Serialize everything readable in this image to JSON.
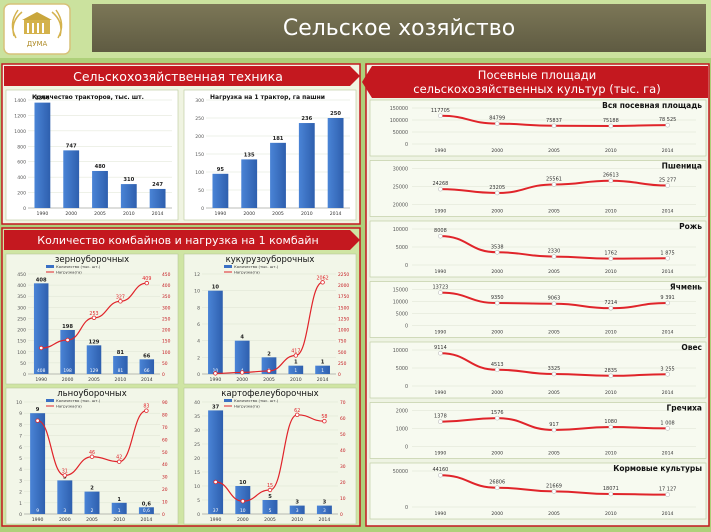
{
  "header": {
    "title": "Сельское хозяйство",
    "logo_text": "ДУМА"
  },
  "colors": {
    "background": "#aed07a",
    "header_bar": "#6f6b4f",
    "section_banner": "#c4181f",
    "bar": "#3a70c4",
    "line": "#e0242a",
    "panel": "#f4f7ec"
  },
  "panels": {
    "machinery_title": "Сельскохозяйственная техника",
    "combines_title": "Количество комбайнов и нагрузка на 1 комбайн",
    "crops_title_line1": "Посевные площади",
    "crops_title_line2": "сельскохозяйственных культур (тыс. га)"
  },
  "chart_data": [
    {
      "id": "tractors",
      "type": "bar",
      "title": "Количество тракторов, тыс. шт.",
      "categories": [
        "1990",
        "2000",
        "2005",
        "2010",
        "2014"
      ],
      "values": [
        1366,
        747,
        480,
        310,
        247
      ],
      "value_labels": [
        "1366",
        "747",
        "480",
        "310",
        "247"
      ],
      "yticks": [
        "0",
        "200",
        "400",
        "600",
        "800",
        "1000",
        "1200",
        "1400"
      ],
      "ylim": [
        0,
        1400
      ]
    },
    {
      "id": "tractor_load",
      "type": "bar",
      "title": "Нагрузка на 1 трактор, га пашни",
      "categories": [
        "1990",
        "2000",
        "2005",
        "2010",
        "2014"
      ],
      "values": [
        95,
        135,
        181,
        236,
        250
      ],
      "value_labels": [
        "95",
        "135",
        "181",
        "236",
        "250"
      ],
      "yticks": [
        "0",
        "50",
        "100",
        "150",
        "200",
        "250",
        "300"
      ],
      "ylim": [
        0,
        300
      ]
    },
    {
      "id": "grain_combines",
      "type": "bar",
      "title": "зерноуборочных",
      "legend": [
        "Количество (тыс. шт.)",
        "Нагрузка(га)"
      ],
      "categories": [
        "1990",
        "2000",
        "2005",
        "2010",
        "2014"
      ],
      "values": [
        408,
        198,
        129,
        81,
        66
      ],
      "value_labels": [
        "408",
        "198",
        "129",
        "81",
        "66"
      ],
      "line_values": [
        117,
        153,
        253,
        327,
        409
      ],
      "line_labels": [
        "",
        "",
        "253",
        "327",
        "409"
      ],
      "yticks": [
        "0",
        "50",
        "100",
        "150",
        "200",
        "250",
        "300",
        "350",
        "400",
        "450"
      ],
      "ylim": [
        0,
        450
      ],
      "y2ticks": [
        "0",
        "50",
        "100",
        "150",
        "200",
        "250",
        "300",
        "350",
        "400",
        "450"
      ],
      "y2lim": [
        0,
        450
      ]
    },
    {
      "id": "corn_combines",
      "type": "bar",
      "title": "кукурузоуборочных",
      "legend": [
        "Количество (тыс. шт.)",
        "Нагрузка(га)"
      ],
      "categories": [
        "1990",
        "2000",
        "2005",
        "2010",
        "2014"
      ],
      "values": [
        10,
        4,
        2,
        1,
        1
      ],
      "value_labels": [
        "10",
        "4",
        "2",
        "1",
        "1"
      ],
      "line_values": [
        14,
        35,
        69,
        417,
        2062
      ],
      "line_labels": [
        "",
        "",
        "",
        "417",
        "2062"
      ],
      "yticks": [
        "0",
        "2",
        "4",
        "6",
        "8",
        "10",
        "12"
      ],
      "ylim": [
        0,
        12
      ],
      "y2ticks": [
        "0",
        "250",
        "500",
        "750",
        "1000",
        "1250",
        "1500",
        "1750",
        "2000",
        "2250"
      ],
      "y2lim": [
        0,
        2250
      ]
    },
    {
      "id": "flax_combines",
      "type": "bar",
      "title": "льноуборочных",
      "legend": [
        "Количество (тыс. шт.)",
        "Нагрузка(га)"
      ],
      "categories": [
        "1990",
        "2000",
        "2005",
        "2010",
        "2014"
      ],
      "values": [
        9,
        3,
        2,
        1,
        0.6
      ],
      "value_labels": [
        "9",
        "3",
        "2",
        "1",
        "0,6"
      ],
      "line_values": [
        75,
        31,
        46,
        42,
        83
      ],
      "line_labels": [
        "",
        "31",
        "46",
        "42",
        "83"
      ],
      "yticks": [
        "0",
        "1",
        "2",
        "3",
        "4",
        "5",
        "6",
        "7",
        "8",
        "9",
        "10"
      ],
      "ylim": [
        0,
        10
      ],
      "y2ticks": [
        "0",
        "10",
        "20",
        "30",
        "40",
        "50",
        "60",
        "70",
        "80",
        "90"
      ],
      "y2lim": [
        0,
        90
      ]
    },
    {
      "id": "potato_combines",
      "type": "bar",
      "title": "картофелеуборочных",
      "legend": [
        "Количество (тыс. шт.)",
        "Нагрузка(га)"
      ],
      "categories": [
        "1990",
        "2000",
        "2005",
        "2010",
        "2014"
      ],
      "values": [
        37,
        10,
        5,
        3,
        3
      ],
      "value_labels": [
        "37",
        "10",
        "5",
        "3",
        "3"
      ],
      "line_values": [
        20,
        8,
        15,
        62,
        58
      ],
      "line_labels": [
        "",
        "",
        "15",
        "62",
        "58"
      ],
      "yticks": [
        "0",
        "5",
        "10",
        "15",
        "20",
        "25",
        "30",
        "35",
        "40"
      ],
      "ylim": [
        0,
        40
      ],
      "y2ticks": [
        "0",
        "10",
        "20",
        "30",
        "40",
        "50",
        "60",
        "70"
      ],
      "y2lim": [
        0,
        70
      ]
    },
    {
      "id": "crops_total",
      "type": "line",
      "title": "Вся посевная площадь",
      "categories": [
        "1990",
        "2000",
        "2005",
        "2010",
        "2014"
      ],
      "values": [
        117705,
        84799,
        75837,
        75188,
        78525
      ],
      "value_labels": [
        "117705",
        "84799",
        "75837",
        "75188",
        "78 525"
      ],
      "yticks": [
        "0",
        "50000",
        "100000",
        "150000"
      ],
      "ylim": [
        0,
        150000
      ]
    },
    {
      "id": "crops_wheat",
      "type": "line",
      "title": "Пшеница",
      "categories": [
        "1990",
        "2000",
        "2005",
        "2010",
        "2014"
      ],
      "values": [
        24268,
        23205,
        25561,
        26613,
        25277
      ],
      "value_labels": [
        "24268",
        "23205",
        "25561",
        "26613",
        "25 277"
      ],
      "yticks": [
        "20000",
        "25000",
        "30000"
      ],
      "ylim": [
        20000,
        30000
      ]
    },
    {
      "id": "crops_rye",
      "type": "line",
      "title": "Рожь",
      "categories": [
        "1990",
        "2000",
        "2005",
        "2010",
        "2014"
      ],
      "values": [
        8008,
        3538,
        2330,
        1762,
        1875
      ],
      "value_labels": [
        "8008",
        "3538",
        "2330",
        "1762",
        "1 875"
      ],
      "yticks": [
        "0",
        "5000",
        "10000"
      ],
      "ylim": [
        0,
        10000
      ]
    },
    {
      "id": "crops_barley",
      "type": "line",
      "title": "Ячмень",
      "categories": [
        "1990",
        "2000",
        "2005",
        "2010",
        "2014"
      ],
      "values": [
        13723,
        9350,
        9063,
        7214,
        9391
      ],
      "value_labels": [
        "13723",
        "9350",
        "9063",
        "7214",
        "9 391"
      ],
      "yticks": [
        "0",
        "5000",
        "10000",
        "15000"
      ],
      "ylim": [
        0,
        15000
      ]
    },
    {
      "id": "crops_oats",
      "type": "line",
      "title": "Овес",
      "categories": [
        "1990",
        "2000",
        "2005",
        "2010",
        "2014"
      ],
      "values": [
        9114,
        4513,
        3325,
        2835,
        3255
      ],
      "value_labels": [
        "9114",
        "4513",
        "3325",
        "2835",
        "3 255"
      ],
      "yticks": [
        "0",
        "5000",
        "10000"
      ],
      "ylim": [
        0,
        10000
      ]
    },
    {
      "id": "crops_buckwheat",
      "type": "line",
      "title": "Гречиха",
      "categories": [
        "1990",
        "2000",
        "2005",
        "2010",
        "2014"
      ],
      "values": [
        1378,
        1576,
        917,
        1080,
        1008
      ],
      "value_labels": [
        "1378",
        "1576",
        "917",
        "1080",
        "1 008"
      ],
      "yticks": [
        "0",
        "1000",
        "2000"
      ],
      "ylim": [
        0,
        2000
      ]
    },
    {
      "id": "crops_fodder",
      "type": "line",
      "title": "Кормовые культуры",
      "categories": [
        "1990",
        "2000",
        "2005",
        "2010",
        "2014"
      ],
      "values": [
        44160,
        26806,
        21669,
        18071,
        17127
      ],
      "value_labels": [
        "44160",
        "26806",
        "21669",
        "18071",
        "17 127"
      ],
      "yticks": [
        "0",
        "50000"
      ],
      "ylim": [
        0,
        50000
      ]
    }
  ]
}
